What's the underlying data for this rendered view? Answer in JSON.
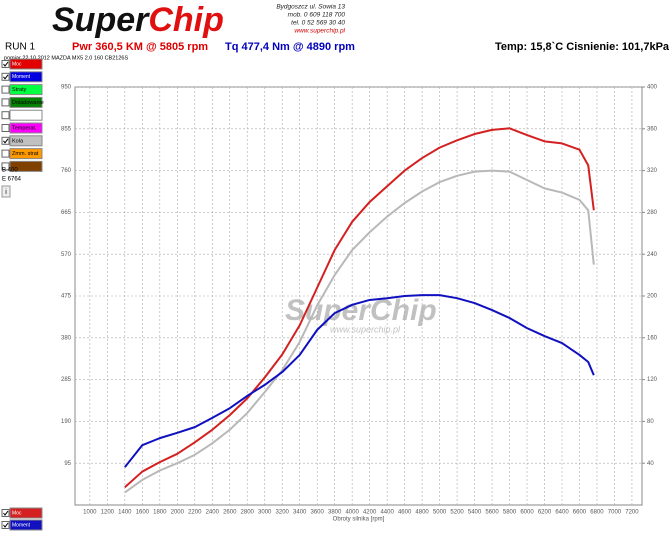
{
  "header": {
    "logo_a": "Super",
    "logo_b": "Chip",
    "address": [
      "Bydgoszcz ul. Sowia 13",
      "mob. 0 609 118 700",
      "tel. 0 52 569 30 40",
      "www.superchip.pl"
    ],
    "run": "RUN 1",
    "power": "Pwr  360,5 KM @ 5805 rpm",
    "torque": "Tq 477,4 Nm @ 4890 rpm",
    "conditions": "Temp: 15,8`C Cisnienie: 101,7kPa",
    "note": "pomiar 22.10.2012 MAZDA MX5 2.0 160 CB2126S"
  },
  "panel": {
    "items": [
      {
        "color": "#e00000",
        "checked": true
      },
      {
        "color": "#0000e0",
        "checked": true
      },
      {
        "label": "Straty",
        "color": "#00ff40",
        "checked": false
      },
      {
        "label": "Doladowanie",
        "color": "#008000",
        "checked": false
      },
      {
        "color": "#ffffff",
        "checked": false
      },
      {
        "label": "Temperat.",
        "color": "#ff00ff",
        "checked": false
      },
      {
        "label": "Kola",
        "color": "#c0c0c0",
        "checked": true
      },
      {
        "label": "Zmm. strat",
        "color": "#ff9900",
        "checked": false
      },
      {
        "color": "#804000",
        "checked": false
      }
    ],
    "begin": "B 400",
    "end": "E 6764",
    "info": "i"
  },
  "watermark": {
    "logo": "SuperChip",
    "url": "www.superchip.pl"
  },
  "chart_data": {
    "type": "line",
    "xlabel": "Obroty silnika [rpm]",
    "x": [
      1400,
      1600,
      1800,
      2000,
      2200,
      2400,
      2600,
      2800,
      3000,
      3200,
      3400,
      3600,
      3800,
      4000,
      4200,
      4400,
      4600,
      4800,
      5000,
      5200,
      5400,
      5600,
      5800,
      6000,
      6200,
      6400,
      6600,
      6700,
      6764
    ],
    "series": [
      {
        "name": "Moc",
        "color": "#d42020",
        "axis": "y2",
        "values": [
          17,
          32,
          41,
          49,
          60,
          72,
          86,
          102,
          122,
          144,
          172,
          208,
          244,
          271,
          290,
          305,
          320,
          332,
          342,
          349,
          355,
          359,
          360.5,
          354,
          348,
          346,
          340,
          325,
          282
        ]
      },
      {
        "name": "Kola",
        "color": "#b8b8b8",
        "axis": "y2",
        "values": [
          12,
          24,
          33,
          40,
          48,
          59,
          72,
          88,
          108,
          129,
          156,
          191,
          220,
          244,
          261,
          276,
          289,
          300,
          309,
          315,
          319,
          320,
          319,
          311,
          303,
          299,
          292,
          282,
          230
        ]
      },
      {
        "name": "Moment",
        "color": "#1010c0",
        "values": [
          86,
          136,
          152,
          164,
          177,
          198,
          220,
          248,
          273,
          302,
          341,
          398,
          436,
          455,
          466,
          470,
          475,
          477,
          477,
          470,
          459,
          443,
          425,
          402,
          384,
          368,
          341,
          325,
          295
        ]
      }
    ],
    "xlim": [
      830,
      7315
    ],
    "xticks": [
      1000,
      1200,
      1400,
      1600,
      1800,
      2000,
      2200,
      2400,
      2600,
      2800,
      3000,
      3200,
      3400,
      3600,
      3800,
      4000,
      4200,
      4400,
      4600,
      4800,
      5000,
      5200,
      5400,
      5600,
      5800,
      6000,
      6200,
      6400,
      6600,
      6800,
      7000,
      7200
    ],
    "ylim": [
      0,
      950
    ],
    "yticks": [
      95,
      190,
      285,
      380,
      475,
      570,
      665,
      760,
      855,
      950
    ],
    "y2lim": [
      0,
      400
    ],
    "y2ticks": [
      40,
      80,
      120,
      160,
      200,
      240,
      280,
      320,
      360,
      400
    ],
    "grid": true
  }
}
